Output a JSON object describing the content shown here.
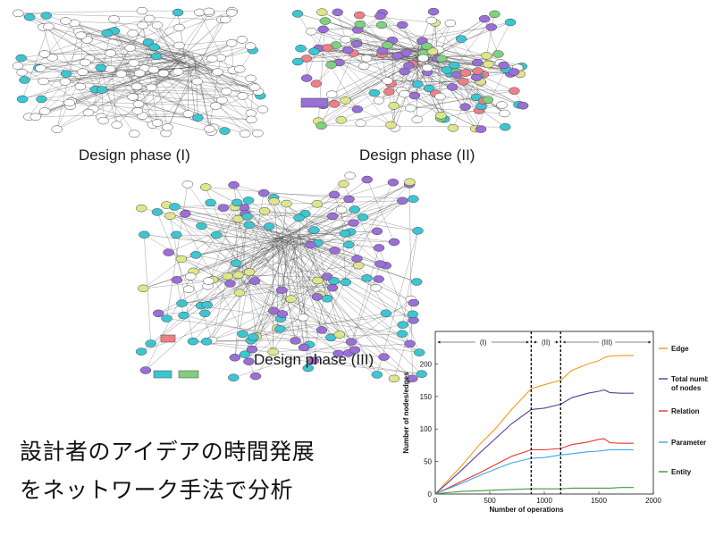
{
  "phases": {
    "phase1": "Design phase (I)",
    "phase2": "Design phase (II)",
    "phase3": "Design phase (III)"
  },
  "text": {
    "line1": "設計者のアイデアの時間発展",
    "line2": "をネットワーク手法で分析"
  },
  "colors": {
    "node_outline": "#444444",
    "node_white": "#ffffff",
    "node_cyan": "#3cc6d2",
    "node_purple": "#9a6fd6",
    "node_yellow": "#dfe58a",
    "node_red": "#ef7f86",
    "node_green": "#7fd07f",
    "edge": "#555555"
  },
  "chart_data": {
    "type": "line",
    "xlabel": "Number of operations",
    "ylabel": "Number of nodes/edges",
    "xlim": [
      0,
      2000
    ],
    "ylim": [
      0,
      250
    ],
    "xticks": [
      "0",
      "500",
      "1000",
      "1500",
      "2000"
    ],
    "yticks": [
      "0",
      "50",
      "100",
      "150",
      "200"
    ],
    "phase_boundaries": [
      880,
      1150
    ],
    "phase_labels": [
      "(I)",
      "(II)",
      "(III)"
    ],
    "grid": false,
    "legend": "right",
    "series": [
      {
        "name": "Edge",
        "color": "#f39a1e",
        "x": [
          0,
          100,
          250,
          400,
          550,
          700,
          880,
          1000,
          1150,
          1250,
          1400,
          1500,
          1550,
          1600,
          1700,
          1820
        ],
        "y": [
          0,
          18,
          45,
          75,
          100,
          130,
          162,
          168,
          175,
          190,
          200,
          205,
          210,
          212,
          213,
          213
        ]
      },
      {
        "name": "Total number of nodes",
        "color": "#5a3a9a",
        "x": [
          0,
          100,
          250,
          400,
          550,
          700,
          880,
          1000,
          1150,
          1250,
          1400,
          1500,
          1550,
          1600,
          1700,
          1820
        ],
        "y": [
          0,
          15,
          38,
          62,
          85,
          108,
          130,
          132,
          138,
          148,
          155,
          158,
          160,
          156,
          155,
          155
        ]
      },
      {
        "name": "Relation",
        "color": "#e8352f",
        "x": [
          0,
          100,
          250,
          400,
          550,
          700,
          880,
          1000,
          1150,
          1250,
          1400,
          1500,
          1550,
          1600,
          1700,
          1820
        ],
        "y": [
          0,
          8,
          20,
          32,
          45,
          58,
          68,
          68,
          70,
          76,
          80,
          84,
          85,
          79,
          78,
          78
        ]
      },
      {
        "name": "Parameter",
        "color": "#3aa8e8",
        "x": [
          0,
          100,
          250,
          400,
          550,
          700,
          880,
          1000,
          1150,
          1250,
          1400,
          1500,
          1550,
          1600,
          1700,
          1820
        ],
        "y": [
          0,
          7,
          17,
          28,
          38,
          48,
          55,
          56,
          60,
          62,
          65,
          66,
          67,
          68,
          68,
          68
        ]
      },
      {
        "name": "Entity",
        "color": "#3c9a3c",
        "x": [
          0,
          100,
          250,
          400,
          550,
          700,
          880,
          1000,
          1150,
          1250,
          1400,
          1500,
          1550,
          1600,
          1700,
          1820
        ],
        "y": [
          0,
          2,
          4,
          5,
          6,
          7,
          8,
          8,
          8,
          9,
          9,
          9,
          9,
          9,
          10,
          10
        ]
      }
    ]
  }
}
